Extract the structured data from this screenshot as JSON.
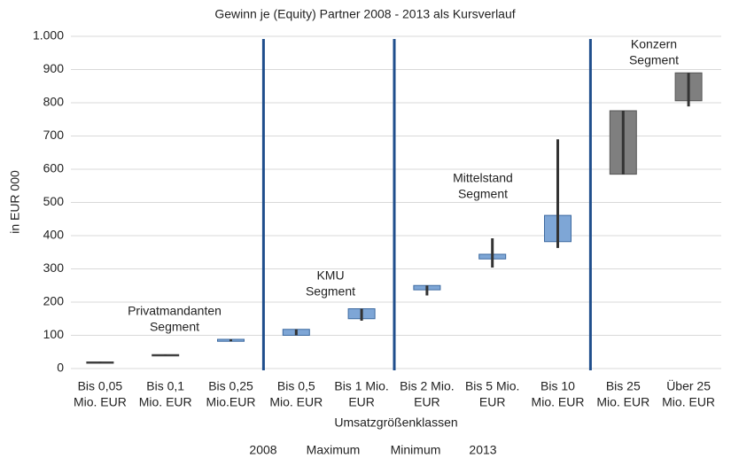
{
  "chart_data": {
    "type": "candlestick",
    "title": "Gewinn je (Equity) Partner 2008 - 2013 als Kursverlauf",
    "y_label": "in EUR 000",
    "x_label": "Umsatzgrößenklassen",
    "categories": [
      [
        "Bis 0,05",
        "Mio. EUR"
      ],
      [
        "Bis 0,1",
        "Mio. EUR"
      ],
      [
        "Bis 0,25",
        "Mio.EUR"
      ],
      [
        "Bis 0,5",
        "Mio. EUR"
      ],
      [
        "Bis 1 Mio.",
        "EUR"
      ],
      [
        "Bis 2 Mio.",
        "EUR"
      ],
      [
        "Bis 5 Mio.",
        "EUR"
      ],
      [
        "Bis 10",
        "Mio. EUR"
      ],
      [
        "Bis 25",
        "Mio. EUR"
      ],
      [
        "Über 25",
        "Mio. EUR"
      ]
    ],
    "series": [
      {
        "name": "2008",
        "values": [
          18,
          40,
          82,
          100,
          150,
          237,
          330,
          382,
          585,
          806
        ]
      },
      {
        "name": "Maximum",
        "values": [
          20,
          42,
          88,
          118,
          180,
          250,
          392,
          690,
          776,
          890
        ]
      },
      {
        "name": "Minimum",
        "values": [
          18,
          40,
          82,
          100,
          144,
          220,
          304,
          363,
          584,
          789
        ]
      },
      {
        "name": "2013",
        "values": [
          20,
          42,
          88,
          118,
          180,
          250,
          344,
          461,
          776,
          890
        ]
      }
    ],
    "colors": [
      "#404040",
      "#404040",
      "#7ea6d6",
      "#7ea6d6",
      "#7ea6d6",
      "#7ea6d6",
      "#7ea6d6",
      "#7ea6d6",
      "#7f7f7f",
      "#7f7f7f"
    ],
    "annotations": [
      [
        "Privatmandanten",
        "Segment"
      ],
      [
        "KMU",
        "Segment"
      ],
      [
        "Mittelstand",
        "Segment"
      ],
      [
        "Konzern",
        "Segment"
      ]
    ],
    "ylim": [
      0,
      1000
    ],
    "yticks": [
      0,
      100,
      200,
      300,
      400,
      500,
      600,
      700,
      800,
      900,
      {
        "value": 1000,
        "label": "1.000"
      }
    ],
    "grid": true
  }
}
